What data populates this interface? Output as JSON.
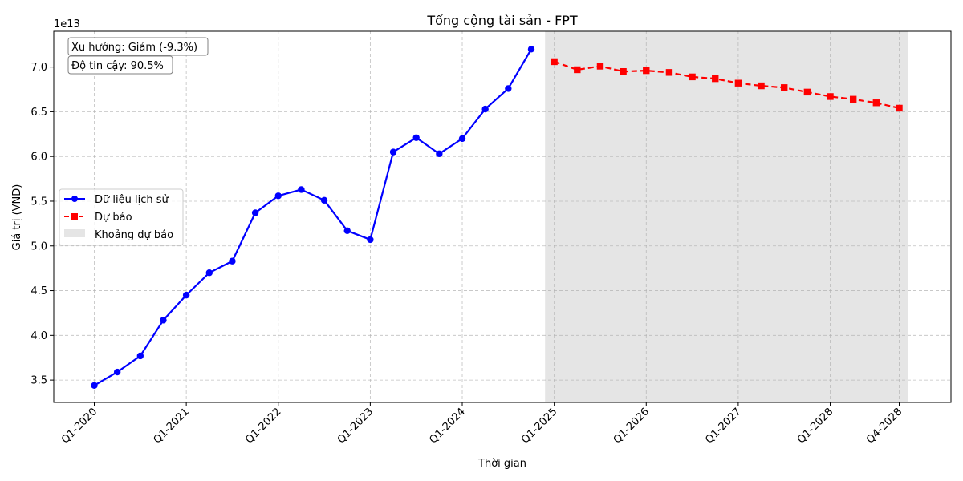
{
  "chart_data": {
    "type": "line",
    "title": "Tổng cộng tài sản - FPT",
    "xlabel": "Thời gian",
    "ylabel": "Giá trị (VND)",
    "y_multiplier_label": "1e13",
    "y_unit_scale": 10000000000000.0,
    "ylim": [
      3.25,
      7.4
    ],
    "y_ticks": [
      3.5,
      4.0,
      4.5,
      5.0,
      5.5,
      6.0,
      6.5,
      7.0
    ],
    "y_tick_labels": [
      "3.5",
      "4.0",
      "4.5",
      "5.0",
      "5.5",
      "6.0",
      "6.5",
      "7.0"
    ],
    "x_periods": [
      "Q1-2020",
      "Q2-2020",
      "Q3-2020",
      "Q4-2020",
      "Q1-2021",
      "Q2-2021",
      "Q3-2021",
      "Q4-2021",
      "Q1-2022",
      "Q2-2022",
      "Q3-2022",
      "Q4-2022",
      "Q1-2023",
      "Q2-2023",
      "Q3-2023",
      "Q4-2023",
      "Q1-2024",
      "Q2-2024",
      "Q3-2024",
      "Q4-2024",
      "Q1-2025",
      "Q2-2025",
      "Q3-2025",
      "Q4-2025",
      "Q1-2026",
      "Q2-2026",
      "Q3-2026",
      "Q4-2026",
      "Q1-2027",
      "Q2-2027",
      "Q3-2027",
      "Q4-2027",
      "Q1-2028",
      "Q2-2028",
      "Q3-2028",
      "Q4-2028"
    ],
    "x_tick_labels": [
      "Q1-2020",
      "Q1-2021",
      "Q1-2022",
      "Q1-2023",
      "Q1-2024",
      "Q1-2025",
      "Q1-2026",
      "Q1-2027",
      "Q1-2028",
      "Q4-2028"
    ],
    "grid": true,
    "legend_position": "center-left",
    "legend": {
      "historical": "Dữ liệu lịch sử",
      "forecast": "Dự báo",
      "forecast_range": "Khoảng dự báo"
    },
    "series": [
      {
        "name": "Dữ liệu lịch sử",
        "color": "#0000ff",
        "marker": "circle",
        "x": [
          "Q1-2020",
          "Q2-2020",
          "Q3-2020",
          "Q4-2020",
          "Q1-2021",
          "Q2-2021",
          "Q3-2021",
          "Q4-2021",
          "Q1-2022",
          "Q2-2022",
          "Q3-2022",
          "Q4-2022",
          "Q1-2023",
          "Q2-2023",
          "Q3-2023",
          "Q4-2023",
          "Q1-2024",
          "Q2-2024",
          "Q3-2024",
          "Q4-2024"
        ],
        "values": [
          3.44,
          3.59,
          3.77,
          4.17,
          4.45,
          4.7,
          4.83,
          5.37,
          5.56,
          5.63,
          5.51,
          5.17,
          5.07,
          6.05,
          6.21,
          6.03,
          6.2,
          6.53,
          6.76,
          7.2
        ]
      },
      {
        "name": "Dự báo",
        "color": "#ff0000",
        "marker": "square",
        "x": [
          "Q1-2025",
          "Q2-2025",
          "Q3-2025",
          "Q4-2025",
          "Q1-2026",
          "Q2-2026",
          "Q3-2026",
          "Q4-2026",
          "Q1-2027",
          "Q2-2027",
          "Q3-2027",
          "Q4-2027",
          "Q1-2028",
          "Q2-2028",
          "Q3-2028",
          "Q4-2028"
        ],
        "values": [
          7.06,
          6.97,
          7.01,
          6.95,
          6.96,
          6.94,
          6.89,
          6.87,
          6.82,
          6.79,
          6.77,
          6.72,
          6.67,
          6.64,
          6.6,
          6.54
        ]
      }
    ],
    "forecast_band": {
      "color": "#e5e5e5"
    },
    "annotations": [
      {
        "text": "Xu hướng: Giảm (-9.3%)"
      },
      {
        "text": "Độ tin cậy: 90.5%"
      }
    ]
  }
}
